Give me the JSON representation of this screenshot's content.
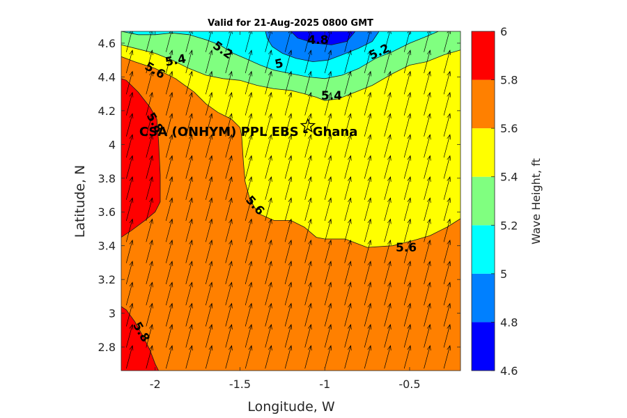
{
  "chart_data": {
    "type": "heatmap",
    "subtype": "filled-contour with wave direction vectors",
    "title": "Valid for 21-Aug-2025 0800 GMT",
    "xlabel": "Longitude, W",
    "ylabel": "Latitude, N",
    "xlim": [
      -2.2,
      -0.2
    ],
    "ylim": [
      2.66,
      4.67
    ],
    "xticks": [
      -2,
      -1.5,
      -1,
      -0.5
    ],
    "xtick_labels": [
      "-2",
      "-1.5",
      "-1",
      "-0.5"
    ],
    "yticks": [
      2.8,
      3.0,
      3.2,
      3.4,
      3.6,
      3.8,
      4.0,
      4.2,
      4.4,
      4.6
    ],
    "ytick_labels": [
      "2.8",
      "3",
      "3.2",
      "3.4",
      "3.6",
      "3.8",
      "4",
      "4.2",
      "4.4",
      "4.6"
    ],
    "grid": false,
    "colorbar": {
      "label": "Wave Height, ft",
      "levels": [
        4.6,
        4.8,
        5.0,
        5.2,
        5.4,
        5.6,
        5.8,
        6.0
      ],
      "tick_labels": [
        "4.6",
        "4.8",
        "5",
        "5.2",
        "5.4",
        "5.6",
        "5.8",
        "6"
      ],
      "colors": [
        "#0000ff",
        "#0080ff",
        "#00ffff",
        "#80ff80",
        "#ffff00",
        "#ff8000",
        "#ff0000"
      ]
    },
    "contour_boundaries": [
      {
        "level": 5.8,
        "points": [
          [
            -2.2,
            4.39
          ],
          [
            -2.17,
            4.38
          ],
          [
            -2.1,
            4.31
          ],
          [
            -2.03,
            4.22
          ],
          [
            -1.99,
            4.15
          ],
          [
            -1.98,
            4.02
          ],
          [
            -1.97,
            3.82
          ],
          [
            -1.97,
            3.66
          ],
          [
            -2.0,
            3.6
          ],
          [
            -2.06,
            3.55
          ],
          [
            -2.14,
            3.49
          ],
          [
            -2.2,
            3.45
          ]
        ]
      },
      {
        "level": 5.8,
        "points": [
          [
            -2.2,
            3.04
          ],
          [
            -2.17,
            3.02
          ],
          [
            -2.12,
            2.95
          ],
          [
            -2.07,
            2.86
          ],
          [
            -2.03,
            2.78
          ],
          [
            -2.0,
            2.7
          ],
          [
            -1.98,
            2.66
          ]
        ]
      },
      {
        "level": 5.6,
        "points": [
          [
            -2.2,
            4.52
          ],
          [
            -2.12,
            4.49
          ],
          [
            -2.0,
            4.45
          ],
          [
            -1.88,
            4.39
          ],
          [
            -1.77,
            4.31
          ],
          [
            -1.7,
            4.24
          ],
          [
            -1.63,
            4.19
          ],
          [
            -1.55,
            4.15
          ],
          [
            -1.5,
            4.1
          ],
          [
            -1.49,
            4.05
          ],
          [
            -1.48,
            3.9
          ],
          [
            -1.47,
            3.78
          ],
          [
            -1.44,
            3.67
          ],
          [
            -1.39,
            3.59
          ],
          [
            -1.3,
            3.55
          ],
          [
            -1.2,
            3.55
          ],
          [
            -1.12,
            3.51
          ],
          [
            -1.05,
            3.45
          ],
          [
            -1.0,
            3.44
          ],
          [
            -0.88,
            3.44
          ],
          [
            -0.75,
            3.39
          ],
          [
            -0.6,
            3.4
          ],
          [
            -0.48,
            3.43
          ],
          [
            -0.38,
            3.46
          ],
          [
            -0.28,
            3.51
          ],
          [
            -0.2,
            3.56
          ]
        ]
      },
      {
        "level": 5.4,
        "points": [
          [
            -2.2,
            4.59
          ],
          [
            -2.12,
            4.57
          ],
          [
            -2.0,
            4.54
          ],
          [
            -1.9,
            4.5
          ],
          [
            -1.8,
            4.45
          ],
          [
            -1.7,
            4.41
          ],
          [
            -1.6,
            4.39
          ],
          [
            -1.5,
            4.38
          ],
          [
            -1.4,
            4.35
          ],
          [
            -1.3,
            4.33
          ],
          [
            -1.2,
            4.32
          ],
          [
            -1.12,
            4.3
          ],
          [
            -1.05,
            4.28
          ],
          [
            -1.0,
            4.26
          ],
          [
            -0.92,
            4.27
          ],
          [
            -0.82,
            4.31
          ],
          [
            -0.72,
            4.35
          ],
          [
            -0.6,
            4.42
          ],
          [
            -0.5,
            4.47
          ],
          [
            -0.4,
            4.49
          ],
          [
            -0.3,
            4.53
          ],
          [
            -0.2,
            4.56
          ]
        ]
      },
      {
        "level": 5.2,
        "points": [
          [
            -2.2,
            4.67
          ],
          [
            -2.1,
            4.65
          ],
          [
            -2.0,
            4.65
          ],
          [
            -1.9,
            4.66
          ],
          [
            -1.8,
            4.65
          ],
          [
            -1.7,
            4.62
          ],
          [
            -1.62,
            4.59
          ],
          [
            -1.54,
            4.54
          ],
          [
            -1.47,
            4.51
          ],
          [
            -1.38,
            4.47
          ],
          [
            -1.3,
            4.44
          ],
          [
            -1.2,
            4.42
          ],
          [
            -1.1,
            4.4
          ],
          [
            -1.0,
            4.39
          ],
          [
            -0.9,
            4.41
          ],
          [
            -0.8,
            4.45
          ],
          [
            -0.7,
            4.51
          ],
          [
            -0.6,
            4.55
          ],
          [
            -0.5,
            4.6
          ],
          [
            -0.4,
            4.64
          ],
          [
            -0.33,
            4.67
          ]
        ]
      },
      {
        "level": 5.0,
        "points": [
          [
            -1.35,
            4.67
          ],
          [
            -1.34,
            4.63
          ],
          [
            -1.31,
            4.58
          ],
          [
            -1.25,
            4.54
          ],
          [
            -1.17,
            4.51
          ],
          [
            -1.07,
            4.49
          ],
          [
            -0.98,
            4.5
          ],
          [
            -0.9,
            4.53
          ],
          [
            -0.8,
            4.57
          ],
          [
            -0.72,
            4.61
          ],
          [
            -0.68,
            4.67
          ]
        ]
      },
      {
        "level": 4.8,
        "points": [
          [
            -1.2,
            4.67
          ],
          [
            -1.16,
            4.63
          ],
          [
            -1.06,
            4.6
          ],
          [
            -0.96,
            4.59
          ],
          [
            -0.87,
            4.61
          ],
          [
            -0.82,
            4.67
          ]
        ]
      }
    ],
    "contour_labels": [
      {
        "text": "5.8",
        "x": -2.0,
        "y": 4.13,
        "angle": 60
      },
      {
        "text": "5.8",
        "x": -2.08,
        "y": 2.89,
        "angle": 60
      },
      {
        "text": "5.6",
        "x": -2.0,
        "y": 4.44,
        "angle": 30
      },
      {
        "text": "5.6",
        "x": -1.41,
        "y": 3.64,
        "angle": 48
      },
      {
        "text": "5.6",
        "x": -0.52,
        "y": 3.39,
        "angle": 0
      },
      {
        "text": "5.4",
        "x": -1.88,
        "y": 4.5,
        "angle": -10
      },
      {
        "text": "5.4",
        "x": -0.96,
        "y": 4.29,
        "angle": 0
      },
      {
        "text": "5.2",
        "x": -1.6,
        "y": 4.56,
        "angle": 35
      },
      {
        "text": "5.2",
        "x": -0.68,
        "y": 4.55,
        "angle": -25
      },
      {
        "text": "5",
        "x": -1.27,
        "y": 4.48,
        "angle": -12
      },
      {
        "text": "4.8",
        "x": -1.04,
        "y": 4.62,
        "angle": 0
      }
    ],
    "wave_vectors": {
      "description": "Uniform wave direction arrows pointing NNE",
      "x_start": -2.17,
      "x_step": 0.117,
      "y_start": 2.73,
      "y_step": 0.125,
      "components_deg_from_north": 15
    },
    "annotations": [
      {
        "text": "CSA (ONHYM) PPL EBS  - Ghana",
        "x": -1.45,
        "y": 4.05
      },
      {
        "marker": "star",
        "x": -1.1,
        "y": 4.11
      }
    ]
  }
}
